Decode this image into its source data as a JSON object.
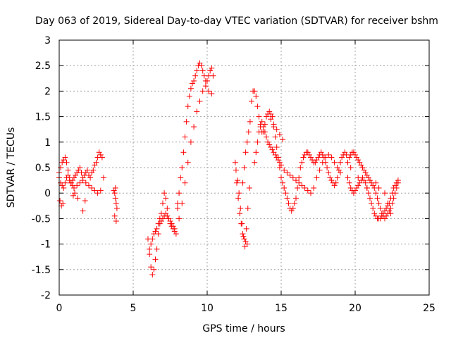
{
  "chart_data": {
    "type": "scatter",
    "title": "Day 063 of 2019, Sidereal Day-to-day VTEC variation (SDTVAR) for receiver bshm",
    "xlabel": "GPS time / hours",
    "ylabel": "SDTVAR / TECUs",
    "xlim": [
      0,
      25
    ],
    "ylim": [
      -2,
      3
    ],
    "xticks": [
      "0",
      "5",
      "10",
      "15",
      "20",
      "25"
    ],
    "yticks": [
      "-2",
      "-1.5",
      "-1",
      "-0.5",
      "0",
      "0.5",
      "1",
      "1.5",
      "2",
      "2.5",
      "3"
    ],
    "grid": true,
    "marker": "+",
    "series_color": "#ff0000",
    "series": [
      {
        "name": "SDTVAR",
        "x": [
          0.0,
          0.1,
          0.2,
          0.3,
          0.4,
          0.5,
          0.6,
          0.7,
          0.8,
          0.9,
          1.0,
          1.1,
          1.2,
          1.3,
          1.4,
          1.5,
          1.6,
          1.7,
          1.8,
          1.9,
          2.0,
          2.1,
          2.2,
          2.3,
          2.4,
          2.5,
          2.6,
          2.7,
          2.8,
          2.9,
          3.0,
          0.0,
          0.1,
          0.2,
          0.3,
          0.4,
          0.5,
          0.6,
          0.7,
          0.8,
          0.9,
          1.0,
          1.2,
          1.4,
          1.6,
          1.8,
          2.0,
          2.2,
          2.4,
          2.6,
          2.8,
          0.05,
          0.15,
          0.25,
          0.95,
          1.05,
          1.25,
          1.6,
          1.75,
          3.7,
          3.75,
          3.8,
          3.85,
          3.9,
          3.75,
          3.85,
          3.8,
          6.0,
          6.1,
          6.2,
          6.3,
          6.4,
          6.5,
          6.6,
          6.7,
          6.8,
          6.9,
          7.0,
          7.1,
          7.2,
          7.3,
          7.4,
          7.5,
          7.6,
          7.7,
          7.8,
          7.9,
          8.0,
          6.1,
          6.2,
          6.3,
          6.4,
          6.5,
          6.6,
          6.7,
          6.8,
          6.9,
          7.0,
          7.1,
          7.2,
          7.3,
          7.4,
          7.5,
          7.6,
          7.7,
          7.8,
          8.0,
          8.1,
          8.2,
          8.3,
          8.4,
          8.5,
          8.6,
          8.7,
          8.8,
          8.9,
          9.0,
          9.1,
          9.2,
          9.3,
          9.4,
          9.5,
          9.6,
          9.7,
          9.8,
          9.9,
          10.0,
          10.1,
          10.2,
          10.3,
          10.4,
          8.1,
          8.3,
          8.5,
          8.7,
          8.9,
          9.1,
          9.3,
          9.5,
          9.7,
          9.9,
          10.1,
          10.3,
          11.9,
          12.0,
          12.1,
          12.2,
          12.3,
          12.4,
          12.5,
          12.6,
          12.7,
          11.95,
          12.05,
          12.15,
          12.25,
          12.35,
          12.45,
          12.55,
          12.65,
          12.75,
          12.85,
          12.4,
          12.5,
          12.6,
          12.7,
          12.8,
          12.9,
          13.0,
          13.1,
          13.2,
          13.3,
          13.4,
          13.5,
          13.6,
          13.7,
          13.8,
          13.9,
          14.0,
          14.1,
          14.2,
          14.3,
          14.4,
          14.5,
          14.6,
          14.7,
          14.8,
          14.9,
          15.0,
          15.1,
          15.2,
          15.3,
          15.4,
          15.5,
          15.6,
          15.7,
          15.8,
          15.9,
          16.0,
          16.1,
          16.2,
          16.3,
          16.4,
          16.5,
          16.6,
          16.7,
          16.8,
          16.9,
          17.0,
          17.1,
          17.2,
          17.3,
          17.4,
          17.5,
          17.6,
          17.7,
          17.8,
          17.9,
          18.0,
          18.1,
          18.2,
          18.3,
          18.4,
          18.5,
          18.6,
          18.7,
          18.8,
          18.9,
          19.0,
          19.1,
          19.2,
          19.3,
          19.4,
          13.2,
          13.3,
          13.4,
          13.5,
          13.6,
          13.7,
          13.8,
          13.9,
          14.0,
          14.1,
          14.2,
          14.3,
          14.4,
          14.5,
          14.6,
          14.7,
          14.8,
          14.9,
          15.0,
          15.2,
          15.4,
          15.6,
          15.8,
          16.0,
          16.2,
          16.4,
          16.6,
          16.8,
          17.0,
          17.2,
          17.4,
          17.6,
          17.8,
          18.0,
          18.2,
          18.4,
          18.6,
          18.8,
          19.0,
          14.3,
          14.5,
          14.7,
          14.9,
          15.1,
          19.5,
          19.6,
          19.7,
          19.8,
          19.9,
          20.0,
          20.1,
          20.2,
          20.3,
          20.4,
          20.5,
          20.6,
          20.7,
          20.8,
          20.9,
          21.0,
          21.1,
          21.2,
          21.3,
          21.4,
          21.5,
          21.6,
          21.7,
          21.8,
          21.9,
          22.0,
          22.1,
          22.2,
          22.3,
          22.4,
          22.5,
          22.6,
          22.7,
          22.8,
          22.9,
          19.5,
          19.6,
          19.7,
          19.8,
          19.9,
          20.0,
          20.1,
          20.2,
          20.3,
          20.4,
          20.5,
          20.6,
          20.7,
          20.8,
          20.9,
          21.0,
          21.1,
          21.2,
          21.3,
          21.4,
          21.5,
          21.6,
          21.7,
          21.8,
          21.9,
          22.0,
          22.1,
          22.2,
          22.3,
          22.4,
          22.5,
          22.6,
          22.7,
          22.8,
          22.9,
          19.7,
          20.2,
          20.8,
          21.4,
          21.6,
          22.0,
          22.2,
          22.4
        ],
        "y": [
          0.4,
          0.5,
          0.6,
          0.65,
          0.7,
          0.6,
          0.45,
          0.3,
          0.2,
          0.25,
          0.3,
          0.35,
          0.4,
          0.45,
          0.5,
          0.4,
          0.3,
          0.35,
          0.4,
          0.45,
          0.35,
          0.3,
          0.4,
          0.45,
          0.55,
          0.6,
          0.7,
          0.8,
          0.75,
          0.7,
          0.3,
          0.3,
          0.2,
          0.15,
          0.1,
          0.2,
          0.3,
          0.35,
          0.25,
          0.2,
          0.15,
          0.1,
          0.15,
          0.2,
          0.25,
          0.2,
          0.15,
          0.1,
          0.05,
          0.0,
          0.05,
          -0.15,
          -0.25,
          -0.2,
          -0.05,
          0.0,
          -0.1,
          -0.35,
          -0.15,
          0.05,
          0.0,
          -0.1,
          -0.2,
          -0.3,
          -0.45,
          -0.55,
          0.1,
          -0.9,
          -1.2,
          -1.45,
          -1.6,
          -1.5,
          -1.3,
          -1.1,
          -0.8,
          -0.6,
          -0.55,
          -0.5,
          -0.45,
          -0.4,
          -0.45,
          -0.5,
          -0.55,
          -0.6,
          -0.65,
          -0.7,
          -0.8,
          -0.3,
          -1.1,
          -1.0,
          -0.9,
          -0.8,
          -0.75,
          -0.7,
          -0.6,
          -0.5,
          -0.4,
          -0.2,
          0.0,
          -0.1,
          -0.3,
          -0.5,
          -0.6,
          -0.65,
          -0.7,
          -0.75,
          -0.2,
          0.0,
          0.3,
          0.5,
          0.8,
          1.1,
          1.4,
          1.7,
          1.9,
          2.05,
          2.15,
          2.2,
          2.3,
          2.4,
          2.5,
          2.55,
          2.5,
          2.4,
          2.3,
          2.2,
          2.2,
          2.3,
          2.4,
          2.45,
          2.3,
          -0.5,
          -0.2,
          0.2,
          0.6,
          1.0,
          1.3,
          1.6,
          1.8,
          2.0,
          2.1,
          2.0,
          1.95,
          0.6,
          0.2,
          -0.1,
          -0.4,
          -0.6,
          -0.8,
          -0.9,
          -0.95,
          -1.0,
          0.45,
          0.25,
          0.0,
          -0.3,
          -0.6,
          -0.85,
          -1.05,
          -0.7,
          -0.3,
          0.1,
          0.2,
          0.5,
          0.8,
          1.0,
          1.2,
          1.4,
          1.8,
          2.0,
          2.0,
          1.9,
          1.7,
          1.5,
          1.3,
          1.2,
          1.2,
          1.35,
          1.5,
          1.55,
          1.6,
          1.55,
          1.5,
          1.3,
          1.1,
          0.9,
          0.7,
          0.5,
          0.3,
          0.2,
          0.1,
          0.0,
          -0.1,
          -0.2,
          -0.3,
          -0.35,
          -0.3,
          -0.2,
          -0.1,
          0.1,
          0.3,
          0.5,
          0.6,
          0.7,
          0.75,
          0.8,
          0.8,
          0.75,
          0.7,
          0.65,
          0.6,
          0.6,
          0.65,
          0.7,
          0.75,
          0.8,
          0.75,
          0.7,
          0.6,
          0.5,
          0.4,
          0.3,
          0.25,
          0.2,
          0.15,
          0.2,
          0.3,
          0.45,
          0.6,
          0.7,
          0.75,
          0.8,
          0.75,
          0.6,
          0.8,
          1.0,
          1.2,
          1.35,
          1.4,
          1.3,
          1.2,
          1.1,
          1.0,
          0.95,
          0.9,
          0.85,
          0.8,
          0.75,
          0.7,
          0.65,
          0.6,
          0.55,
          0.45,
          0.4,
          0.35,
          0.3,
          0.25,
          0.2,
          0.15,
          0.1,
          0.05,
          0.0,
          0.1,
          0.3,
          0.45,
          0.6,
          0.7,
          0.75,
          0.7,
          0.6,
          0.5,
          0.4,
          1.45,
          1.35,
          1.25,
          1.15,
          1.05,
          0.3,
          0.2,
          0.1,
          0.05,
          0.0,
          0.05,
          0.1,
          0.15,
          0.2,
          0.25,
          0.3,
          0.25,
          0.2,
          0.1,
          0.0,
          -0.1,
          -0.2,
          -0.3,
          -0.4,
          -0.45,
          -0.5,
          -0.5,
          -0.5,
          -0.45,
          -0.4,
          -0.35,
          -0.3,
          -0.25,
          -0.2,
          -0.1,
          0.0,
          0.1,
          0.15,
          0.2,
          0.25,
          0.6,
          0.7,
          0.75,
          0.8,
          0.8,
          0.75,
          0.7,
          0.65,
          0.6,
          0.55,
          0.5,
          0.45,
          0.4,
          0.35,
          0.3,
          0.25,
          0.2,
          0.15,
          0.1,
          0.0,
          -0.1,
          -0.2,
          -0.3,
          -0.4,
          -0.45,
          -0.5,
          -0.45,
          -0.4,
          -0.35,
          -0.3,
          -0.2,
          -0.1,
          0.0,
          0.1,
          0.2,
          0.5,
          0.3,
          0.1,
          0.2,
          0.1,
          0.0,
          -0.2,
          -0.4
        ]
      }
    ]
  }
}
